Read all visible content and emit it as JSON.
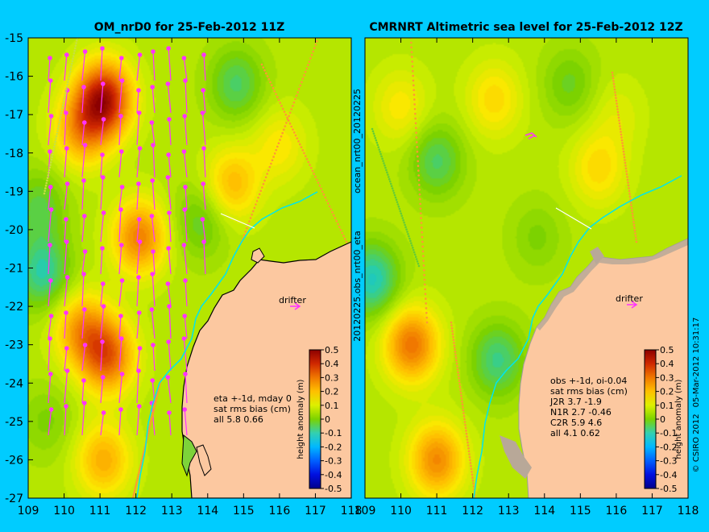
{
  "colors": {
    "background": "#00ccff",
    "land": "#fcc8a0",
    "arrow": "#ff33ff",
    "coastline": "#000000",
    "drifter_track": "#00e5ee",
    "frame": "#000000"
  },
  "side_label_left": "ocean_nrt00_20120225",
  "side_label_left_2": "20120225.obs_nrt00_eta",
  "credit": "© CSIRO 2012",
  "credit_date": "05-Mar-2012 10:31:17",
  "chart_data": [
    {
      "type": "heatmap",
      "title": "OM_nrD0 for 25-Feb-2012 11Z",
      "xlim": [
        109,
        118
      ],
      "ylim": [
        -27,
        -15
      ],
      "x_ticks": [
        "109",
        "110",
        "111",
        "112",
        "113",
        "114",
        "115",
        "116",
        "117",
        "118"
      ],
      "y_ticks": [
        "-15",
        "-16",
        "-17",
        "-18",
        "-19",
        "-20",
        "-21",
        "-22",
        "-23",
        "-24",
        "-25",
        "-26",
        "-27"
      ],
      "drifter_label": "drifter",
      "stats": [
        "eta +-1d, mday 0",
        "sat rms bias (cm)",
        "all 5.8 0.66"
      ],
      "colorbar": {
        "label": "height anomaly (m)",
        "ticks": [
          "0.5",
          "0.4",
          "0.3",
          "0.2",
          "0.1",
          "0",
          "-0.1",
          "-0.2",
          "-0.3",
          "-0.4",
          "-0.5"
        ],
        "range": [
          -0.5,
          0.5
        ]
      },
      "anomaly_centres": [
        {
          "lon": 111.1,
          "lat": -16.6,
          "value": 0.42
        },
        {
          "lon": 110.5,
          "lat": -17.4,
          "value": 0.22
        },
        {
          "lon": 111.2,
          "lat": -23.3,
          "value": 0.3
        },
        {
          "lon": 110.5,
          "lat": -22.6,
          "value": 0.22
        },
        {
          "lon": 111.1,
          "lat": -26.0,
          "value": 0.2
        },
        {
          "lon": 112.1,
          "lat": -20.2,
          "value": 0.26
        },
        {
          "lon": 114.7,
          "lat": -18.8,
          "value": 0.18
        },
        {
          "lon": 116.0,
          "lat": -17.8,
          "value": 0.12
        },
        {
          "lon": 109.4,
          "lat": -21.1,
          "value": -0.12
        },
        {
          "lon": 109.3,
          "lat": -19.4,
          "value": -0.06
        },
        {
          "lon": 114.8,
          "lat": -16.2,
          "value": -0.08
        },
        {
          "lon": 113.8,
          "lat": -19.8,
          "value": -0.05
        },
        {
          "lon": 109.5,
          "lat": -25.0,
          "value": -0.02
        }
      ]
    },
    {
      "type": "heatmap",
      "title": "CMRNRT Altimetric sea level  for 25-Feb-2012 12Z",
      "xlim": [
        109,
        118
      ],
      "ylim": [
        -27,
        -15
      ],
      "x_ticks": [
        "109",
        "110",
        "111",
        "112",
        "113",
        "114",
        "115",
        "116",
        "117",
        "118"
      ],
      "drifter_label": "drifter",
      "stats": [
        "obs +-1d, oi-0.04",
        "sat rms bias (cm)",
        "J2R   3.7 -1.9",
        "N1R   2.7 -0.46",
        "C2R   5.9 4.6",
        "all 4.1 0.62"
      ],
      "colorbar": {
        "label": "height anomaly (m)",
        "ticks": [
          "0.5",
          "0.4",
          "0.3",
          "0.2",
          "0.1",
          "0",
          "-0.1",
          "-0.2",
          "-0.3",
          "-0.4",
          "-0.5"
        ],
        "range": [
          -0.5,
          0.5
        ]
      },
      "anomaly_centres": [
        {
          "lon": 110.3,
          "lat": -23.0,
          "value": 0.28
        },
        {
          "lon": 111.0,
          "lat": -26.0,
          "value": 0.25
        },
        {
          "lon": 110.0,
          "lat": -16.8,
          "value": 0.12
        },
        {
          "lon": 112.6,
          "lat": -16.6,
          "value": 0.14
        },
        {
          "lon": 115.5,
          "lat": -18.4,
          "value": 0.14
        },
        {
          "lon": 116.0,
          "lat": -17.0,
          "value": 0.08
        },
        {
          "lon": 114.4,
          "lat": -24.2,
          "value": 0.06
        },
        {
          "lon": 111.0,
          "lat": -18.2,
          "value": -0.08
        },
        {
          "lon": 109.2,
          "lat": -21.3,
          "value": -0.14
        },
        {
          "lon": 112.7,
          "lat": -23.4,
          "value": -0.1
        },
        {
          "lon": 114.7,
          "lat": -16.2,
          "value": -0.04
        },
        {
          "lon": 113.8,
          "lat": -20.2,
          "value": -0.02
        }
      ]
    }
  ]
}
